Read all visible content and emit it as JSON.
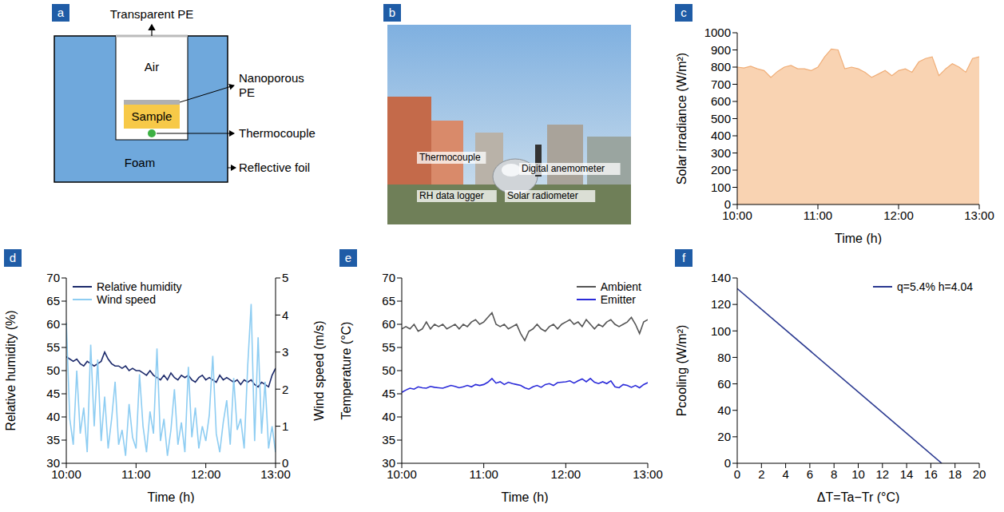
{
  "diagram": {
    "panel": "a",
    "labels": {
      "transparent_pe": "Transparent PE",
      "air": "Air",
      "nanoporous_pe": "Nanoporous PE",
      "sample": "Sample",
      "thermocouple": "Thermocouple",
      "foam": "Foam",
      "reflective_foil": "Reflective foil"
    }
  },
  "photo": {
    "panel": "b",
    "labels": {
      "thermocouple": "Thermocouple",
      "anemometer": "Digital anemometer",
      "rh_logger": "RH data logger",
      "radiometer": "Solar radiometer"
    }
  },
  "chart_data": [
    {
      "panel": "c",
      "type": "area",
      "x_label": "Time (h)",
      "y_label": "Solar irradiance (W/m²)",
      "x": [
        600,
        605,
        610,
        615,
        620,
        625,
        630,
        635,
        640,
        645,
        650,
        655,
        660,
        665,
        670,
        675,
        680,
        685,
        690,
        695,
        700,
        705,
        710,
        715,
        720,
        725,
        730,
        735,
        740,
        745,
        750,
        755,
        760,
        765,
        770,
        775,
        780
      ],
      "xlim": [
        600,
        780
      ],
      "xticks": [
        {
          "value": 600,
          "label": "10:00"
        },
        {
          "value": 660,
          "label": "11:00"
        },
        {
          "value": 720,
          "label": "12:00"
        },
        {
          "value": 780,
          "label": "13:00"
        }
      ],
      "ylim": [
        0,
        1000
      ],
      "yticks": [
        0,
        100,
        200,
        300,
        400,
        500,
        600,
        700,
        800,
        900,
        1000
      ],
      "series": [
        {
          "color": "#f9d3b2",
          "values": [
            800,
            795,
            805,
            790,
            780,
            740,
            775,
            800,
            810,
            790,
            790,
            780,
            800,
            860,
            905,
            900,
            790,
            800,
            790,
            770,
            740,
            760,
            780,
            750,
            780,
            790,
            770,
            830,
            850,
            860,
            750,
            790,
            820,
            800,
            770,
            850,
            860
          ]
        }
      ]
    },
    {
      "panel": "d",
      "type": "line",
      "x_label": "Time (h)",
      "y_label": "Relative humidity (%)",
      "y2_label": "Wind speed (m/s)",
      "legend": "upper left",
      "x": [
        600,
        603,
        606,
        609,
        612,
        615,
        618,
        621,
        624,
        627,
        630,
        633,
        636,
        639,
        642,
        645,
        648,
        651,
        654,
        657,
        660,
        663,
        666,
        669,
        672,
        675,
        678,
        681,
        684,
        687,
        690,
        693,
        696,
        699,
        702,
        705,
        708,
        711,
        714,
        717,
        720,
        723,
        726,
        729,
        732,
        735,
        738,
        741,
        744,
        747,
        750,
        753,
        756,
        759,
        762,
        765,
        768,
        771,
        774,
        777,
        780
      ],
      "xlim": [
        600,
        780
      ],
      "xticks": [
        {
          "value": 600,
          "label": "10:00"
        },
        {
          "value": 660,
          "label": "11:00"
        },
        {
          "value": 720,
          "label": "12:00"
        },
        {
          "value": 780,
          "label": "13:00"
        }
      ],
      "ylim": [
        30,
        70
      ],
      "yticks": [
        30,
        35,
        40,
        45,
        50,
        55,
        60,
        65,
        70
      ],
      "y2lim": [
        0,
        5
      ],
      "y2ticks": [
        0,
        1,
        2,
        3,
        4,
        5
      ],
      "series": [
        {
          "name": "Relative humidity",
          "color": "#1c2a6b",
          "values": [
            53,
            52.5,
            52,
            52.5,
            51.5,
            51,
            52,
            51.5,
            51,
            51.5,
            52,
            54,
            52.5,
            51.5,
            51,
            51,
            50.5,
            51,
            50,
            50.5,
            50,
            50,
            49.5,
            49,
            50,
            49,
            48.5,
            48,
            49,
            48,
            49.5,
            48.5,
            48,
            49,
            48.5,
            49,
            48,
            47.5,
            48.5,
            49,
            48,
            48.5,
            48,
            47.5,
            49,
            48,
            48.5,
            48,
            47.5,
            48,
            47,
            48,
            47.5,
            48,
            47,
            46.5,
            47.5,
            47,
            46.5,
            49,
            50.5
          ]
        },
        {
          "name": "Wind speed",
          "color": "#8ecdf2",
          "axis": "y2",
          "values": [
            3.8,
            1.2,
            0.5,
            2.5,
            0.8,
            1.5,
            0.3,
            3.2,
            1.0,
            2.8,
            0.6,
            1.8,
            0.4,
            1.2,
            2.2,
            0.5,
            0.9,
            0.2,
            1.6,
            0.7,
            0.4,
            2.4,
            1.0,
            0.3,
            1.4,
            0.8,
            3.1,
            0.6,
            1.2,
            0.2,
            0.9,
            2.0,
            0.5,
            1.1,
            0.3,
            2.6,
            0.7,
            1.5,
            0.4,
            1.0,
            0.6,
            1.3,
            2.9,
            0.8,
            0.3,
            1.1,
            1.7,
            0.5,
            2.3,
            0.9,
            1.2,
            0.4,
            2.6,
            4.3,
            0.6,
            3.4,
            0.8,
            2.2,
            0.4,
            1.0,
            0.3
          ]
        }
      ]
    },
    {
      "panel": "e",
      "type": "line",
      "x_label": "Time (h)",
      "y_label": "Temperature (°C)",
      "legend": "upper right",
      "x": [
        600,
        603,
        606,
        609,
        612,
        615,
        618,
        621,
        624,
        627,
        630,
        633,
        636,
        639,
        642,
        645,
        648,
        651,
        654,
        657,
        660,
        663,
        666,
        669,
        672,
        675,
        678,
        681,
        684,
        687,
        690,
        693,
        696,
        699,
        702,
        705,
        708,
        711,
        714,
        717,
        720,
        723,
        726,
        729,
        732,
        735,
        738,
        741,
        744,
        747,
        750,
        753,
        756,
        759,
        762,
        765,
        768,
        771,
        774,
        777,
        780
      ],
      "xlim": [
        600,
        780
      ],
      "xticks": [
        {
          "value": 600,
          "label": "10:00"
        },
        {
          "value": 660,
          "label": "11:00"
        },
        {
          "value": 720,
          "label": "12:00"
        },
        {
          "value": 780,
          "label": "13:00"
        }
      ],
      "ylim": [
        30,
        70
      ],
      "yticks": [
        30,
        35,
        40,
        45,
        50,
        55,
        60,
        65,
        70
      ],
      "series": [
        {
          "name": "Ambient",
          "color": "#555555",
          "values": [
            59,
            59.5,
            59,
            60,
            58.5,
            59,
            60.5,
            59,
            60,
            59.5,
            60,
            59,
            59.5,
            60,
            59,
            60,
            59.5,
            60.5,
            61,
            60,
            60.5,
            61.5,
            62.5,
            60,
            59.5,
            60,
            59,
            59.5,
            60,
            58,
            56.5,
            58.5,
            59,
            60,
            59,
            58.5,
            59.5,
            60,
            59,
            60,
            60.5,
            61,
            60,
            60.5,
            59.5,
            61,
            60,
            59,
            60,
            59.5,
            60.5,
            61,
            60,
            59.5,
            60,
            60.5,
            61.5,
            60,
            58,
            60.5,
            61
          ]
        },
        {
          "name": "Emitter",
          "color": "#2b2bd9",
          "values": [
            45.3,
            45.8,
            46.2,
            46,
            46.5,
            46.3,
            46.2,
            46.6,
            46.4,
            46.3,
            46.2,
            46.5,
            46.8,
            46.6,
            46.3,
            46.5,
            46.8,
            46.5,
            47,
            46.8,
            47,
            47.5,
            48.3,
            47.3,
            47.6,
            47,
            47.5,
            47.2,
            47,
            46.8,
            46.3,
            46,
            46.5,
            46.8,
            46.4,
            47,
            47.2,
            46.8,
            47.4,
            47.5,
            47.6,
            47.8,
            47.3,
            47.8,
            48.2,
            47.6,
            48.3,
            47.5,
            47.2,
            47.6,
            47.2,
            47.8,
            46.5,
            46.3,
            47,
            46.8,
            46.4,
            46.8,
            46.3,
            47,
            47.4
          ]
        }
      ]
    },
    {
      "panel": "f",
      "type": "line",
      "x_label": "ΔT=Ta−Tr (°C)",
      "y_label": "Pcooling (W/m²)",
      "legend": "upper right",
      "x": [
        0,
        16.9
      ],
      "xlim": [
        0,
        20
      ],
      "xticks": [
        0,
        2,
        4,
        6,
        8,
        10,
        12,
        14,
        16,
        18,
        20
      ],
      "ylim": [
        0,
        140
      ],
      "yticks": [
        0,
        20,
        40,
        60,
        80,
        100,
        120,
        140
      ],
      "series": [
        {
          "name": "q=5.4% h=4.04",
          "color": "#2a3990",
          "values": [
            132,
            0
          ]
        }
      ]
    }
  ]
}
